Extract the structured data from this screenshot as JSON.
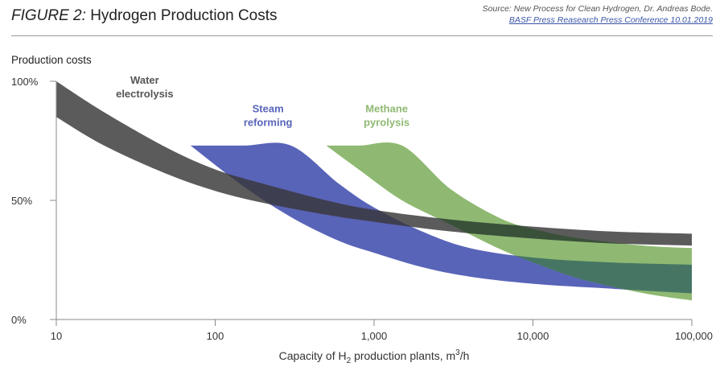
{
  "header": {
    "figure_label": "FIGURE 2:",
    "title": "Hydrogen Production Costs",
    "source_line1": "Source: New Process for Clean Hydrogen, Dr. Andreas Bode.",
    "source_line2": "BASF Press Reasearch Press Conference 10.01.2019"
  },
  "chart_data": {
    "type": "area",
    "title": "Hydrogen Production Costs",
    "ylabel": "Production costs",
    "xlabel_parts": [
      "Capacity of H",
      "2",
      " production plants, m",
      "3",
      "/h"
    ],
    "x_scale": "log",
    "xlim": [
      10,
      100000
    ],
    "ylim": [
      0,
      100
    ],
    "x_ticks": [
      10,
      100,
      1000,
      10000,
      100000
    ],
    "x_tick_labels": [
      "10",
      "100",
      "1,000",
      "10,000",
      "100,000"
    ],
    "y_ticks": [
      0,
      50,
      100
    ],
    "y_tick_labels": [
      "0%",
      "50%",
      "100%"
    ],
    "grid": false,
    "series": [
      {
        "name": "Steam reforming",
        "label_lines": [
          "Steam",
          "reforming"
        ],
        "color": "#5864b8",
        "x": [
          70,
          150,
          300,
          600,
          1000,
          2000,
          4000,
          10000,
          30000,
          100000
        ],
        "upper": [
          73,
          73,
          73,
          57,
          47,
          37,
          30,
          26,
          24,
          23
        ],
        "lower": [
          73,
          56,
          43,
          33,
          28,
          22,
          18,
          15,
          13,
          11
        ]
      },
      {
        "name": "Methane pyrolysis",
        "label_lines": [
          "Methane",
          "pyrolysis"
        ],
        "color": "#8fb972",
        "x": [
          500,
          800,
          1500,
          3000,
          6000,
          10000,
          20000,
          50000,
          100000
        ],
        "upper": [
          73,
          73,
          73,
          55,
          43,
          38,
          34,
          31,
          30
        ],
        "lower": [
          73,
          63,
          50,
          40,
          30,
          24,
          17,
          11,
          8
        ]
      },
      {
        "name": "Water electrolysis",
        "label_lines": [
          "Water",
          "electrolysis"
        ],
        "color": "#5b5b5b",
        "x": [
          10,
          20,
          50,
          100,
          200,
          500,
          1000,
          3000,
          10000,
          30000,
          100000
        ],
        "upper": [
          100,
          87,
          72,
          63,
          57,
          50,
          46,
          42,
          39,
          37,
          36
        ],
        "lower": [
          85,
          73,
          61,
          54,
          49,
          44,
          41,
          37,
          34,
          32,
          31
        ]
      }
    ],
    "overlaps": [
      {
        "between": [
          "Water electrolysis",
          "Steam reforming"
        ],
        "color": "#3a3a50"
      },
      {
        "between": [
          "Water electrolysis",
          "Methane pyrolysis"
        ],
        "color": "#345034"
      },
      {
        "between": [
          "Steam reforming",
          "Methane pyrolysis"
        ],
        "color": "#3a6a60"
      }
    ]
  }
}
